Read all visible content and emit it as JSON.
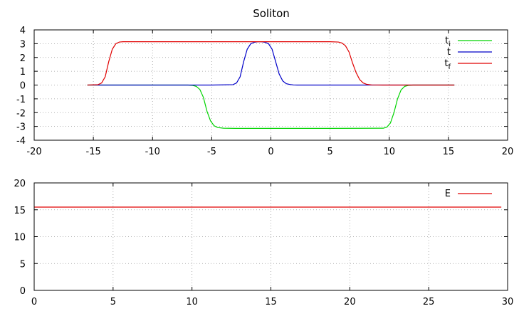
{
  "figure": {
    "title": "Soliton"
  },
  "chart_data": [
    {
      "type": "line",
      "title": "Soliton",
      "xlabel": "",
      "ylabel": "",
      "xlim": [
        -20,
        20
      ],
      "ylim": [
        -4,
        4
      ],
      "xticks": [
        -20,
        -15,
        -10,
        -5,
        0,
        5,
        10,
        15,
        20
      ],
      "yticks": [
        -4,
        -3,
        -2,
        -1,
        0,
        1,
        2,
        3,
        4
      ],
      "grid": true,
      "legend_position": "top-right",
      "series": [
        {
          "name": "t",
          "sub": "i",
          "color": "#00d400",
          "x": [
            -15.5,
            -7,
            -6.6,
            -6.3,
            -6,
            -5.7,
            -5.4,
            -5.1,
            -4.8,
            -4.5,
            -4,
            -3,
            0,
            5,
            9.5,
            9.8,
            10.1,
            10.4,
            10.7,
            11,
            11.3,
            11.6,
            12,
            13,
            15.5
          ],
          "y": [
            0,
            0,
            -0.03,
            -0.1,
            -0.32,
            -0.9,
            -1.9,
            -2.6,
            -2.95,
            -3.08,
            -3.13,
            -3.14,
            -3.14,
            -3.14,
            -3.13,
            -3.05,
            -2.75,
            -2.0,
            -1.0,
            -0.35,
            -0.1,
            -0.03,
            0,
            0,
            0
          ]
        },
        {
          "name": "t",
          "sub": "",
          "color": "#0000c8",
          "x": [
            -15.5,
            -5,
            -3.2,
            -2.9,
            -2.6,
            -2.3,
            -2.0,
            -1.7,
            -1.4,
            -1.1,
            -0.8,
            -0.5,
            -0.2,
            0.1,
            0.4,
            0.7,
            1.0,
            1.3,
            1.6,
            1.9,
            2.2,
            2.5,
            4,
            15.5
          ],
          "y": [
            0,
            0,
            0.03,
            0.15,
            0.6,
            1.7,
            2.6,
            3.0,
            3.1,
            3.14,
            3.14,
            3.1,
            3.0,
            2.6,
            1.7,
            0.8,
            0.3,
            0.1,
            0.04,
            0.01,
            0,
            0,
            0,
            0
          ]
        },
        {
          "name": "t",
          "sub": "f",
          "color": "#e00000",
          "x": [
            -15.5,
            -14.6,
            -14.3,
            -14.0,
            -13.7,
            -13.4,
            -13.1,
            -12.8,
            -12.5,
            -12.0,
            -10,
            0,
            5,
            5.7,
            6.0,
            6.3,
            6.6,
            6.9,
            7.2,
            7.5,
            7.8,
            8.1,
            8.5,
            9.5,
            15.5
          ],
          "y": [
            0,
            0.03,
            0.15,
            0.6,
            1.7,
            2.6,
            3.0,
            3.12,
            3.14,
            3.14,
            3.14,
            3.14,
            3.14,
            3.12,
            3.05,
            2.85,
            2.4,
            1.6,
            0.9,
            0.4,
            0.15,
            0.05,
            0.01,
            0,
            0
          ]
        }
      ]
    },
    {
      "type": "line",
      "title": "",
      "xlabel": "",
      "ylabel": "",
      "xlim": [
        0,
        30
      ],
      "ylim": [
        0,
        20
      ],
      "xticks": [
        0,
        5,
        10,
        15,
        20,
        25,
        30
      ],
      "yticks": [
        0,
        5,
        10,
        15,
        20
      ],
      "grid": true,
      "legend_position": "top-right",
      "series": [
        {
          "name": "E",
          "sub": "",
          "color": "#e00000",
          "x": [
            0,
            29.6
          ],
          "y": [
            15.5,
            15.5
          ]
        }
      ]
    }
  ]
}
